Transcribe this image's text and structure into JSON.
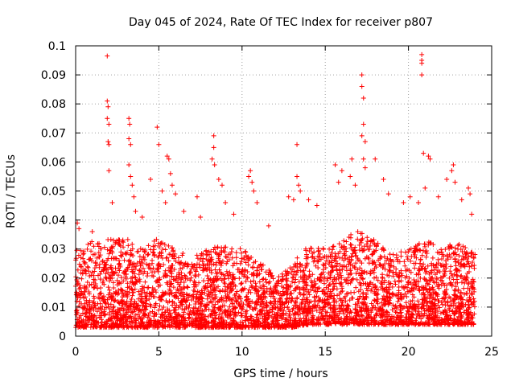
{
  "chart_data": {
    "type": "scatter",
    "title": "Day 045 of 2024, Rate Of TEC Index for receiver p807",
    "xlabel": "GPS time / hours",
    "ylabel": "ROTI / TECUs",
    "xlim": [
      0,
      25
    ],
    "ylim": [
      0,
      0.1
    ],
    "xticks": [
      0,
      5,
      10,
      15,
      20,
      25
    ],
    "yticks": [
      0,
      0.01,
      0.02,
      0.03,
      0.04,
      0.05,
      0.06,
      0.07,
      0.08,
      0.09,
      0.1
    ],
    "xtick_labels": [
      "0",
      "5",
      "10",
      "15",
      "20",
      "25"
    ],
    "ytick_labels": [
      "0",
      "0.01",
      "0.02",
      "0.03",
      "0.04",
      "0.05",
      "0.06",
      "0.07",
      "0.08",
      "0.09",
      "0.1"
    ],
    "grid": true,
    "marker": "+",
    "color": "#ff0000",
    "series": [
      {
        "name": "ROTI",
        "peaks": [
          {
            "x": 0.1,
            "y": 0.039
          },
          {
            "x": 0.2,
            "y": 0.037
          },
          {
            "x": 1.0,
            "y": 0.036
          },
          {
            "x": 1.9,
            "y": 0.0965
          },
          {
            "x": 1.9,
            "y": 0.081
          },
          {
            "x": 1.95,
            "y": 0.079
          },
          {
            "x": 1.9,
            "y": 0.075
          },
          {
            "x": 2.0,
            "y": 0.073
          },
          {
            "x": 1.95,
            "y": 0.067
          },
          {
            "x": 2.0,
            "y": 0.066
          },
          {
            "x": 2.0,
            "y": 0.057
          },
          {
            "x": 2.2,
            "y": 0.046
          },
          {
            "x": 3.2,
            "y": 0.075
          },
          {
            "x": 3.25,
            "y": 0.073
          },
          {
            "x": 3.2,
            "y": 0.068
          },
          {
            "x": 3.3,
            "y": 0.066
          },
          {
            "x": 3.2,
            "y": 0.059
          },
          {
            "x": 3.3,
            "y": 0.055
          },
          {
            "x": 3.4,
            "y": 0.052
          },
          {
            "x": 3.5,
            "y": 0.048
          },
          {
            "x": 3.6,
            "y": 0.043
          },
          {
            "x": 4.0,
            "y": 0.041
          },
          {
            "x": 4.5,
            "y": 0.054
          },
          {
            "x": 4.9,
            "y": 0.072
          },
          {
            "x": 5.0,
            "y": 0.066
          },
          {
            "x": 5.2,
            "y": 0.05
          },
          {
            "x": 5.4,
            "y": 0.046
          },
          {
            "x": 5.5,
            "y": 0.062
          },
          {
            "x": 5.6,
            "y": 0.061
          },
          {
            "x": 5.7,
            "y": 0.056
          },
          {
            "x": 5.8,
            "y": 0.052
          },
          {
            "x": 6.0,
            "y": 0.049
          },
          {
            "x": 6.5,
            "y": 0.043
          },
          {
            "x": 7.3,
            "y": 0.048
          },
          {
            "x": 7.5,
            "y": 0.041
          },
          {
            "x": 8.3,
            "y": 0.069
          },
          {
            "x": 8.3,
            "y": 0.065
          },
          {
            "x": 8.2,
            "y": 0.061
          },
          {
            "x": 8.35,
            "y": 0.059
          },
          {
            "x": 8.6,
            "y": 0.054
          },
          {
            "x": 8.8,
            "y": 0.052
          },
          {
            "x": 9.0,
            "y": 0.046
          },
          {
            "x": 9.5,
            "y": 0.042
          },
          {
            "x": 10.5,
            "y": 0.057
          },
          {
            "x": 10.4,
            "y": 0.055
          },
          {
            "x": 10.6,
            "y": 0.053
          },
          {
            "x": 10.7,
            "y": 0.05
          },
          {
            "x": 10.9,
            "y": 0.046
          },
          {
            "x": 11.6,
            "y": 0.038
          },
          {
            "x": 12.8,
            "y": 0.048
          },
          {
            "x": 13.1,
            "y": 0.047
          },
          {
            "x": 13.3,
            "y": 0.066
          },
          {
            "x": 13.3,
            "y": 0.055
          },
          {
            "x": 13.4,
            "y": 0.052
          },
          {
            "x": 13.5,
            "y": 0.05
          },
          {
            "x": 14.0,
            "y": 0.047
          },
          {
            "x": 14.5,
            "y": 0.045
          },
          {
            "x": 15.6,
            "y": 0.059
          },
          {
            "x": 15.8,
            "y": 0.053
          },
          {
            "x": 16.0,
            "y": 0.057
          },
          {
            "x": 16.5,
            "y": 0.055
          },
          {
            "x": 16.6,
            "y": 0.061
          },
          {
            "x": 16.8,
            "y": 0.052
          },
          {
            "x": 17.2,
            "y": 0.09
          },
          {
            "x": 17.2,
            "y": 0.086
          },
          {
            "x": 17.3,
            "y": 0.082
          },
          {
            "x": 17.3,
            "y": 0.073
          },
          {
            "x": 17.2,
            "y": 0.069
          },
          {
            "x": 17.4,
            "y": 0.067
          },
          {
            "x": 17.3,
            "y": 0.061
          },
          {
            "x": 17.4,
            "y": 0.058
          },
          {
            "x": 18.0,
            "y": 0.061
          },
          {
            "x": 18.5,
            "y": 0.054
          },
          {
            "x": 18.8,
            "y": 0.049
          },
          {
            "x": 19.7,
            "y": 0.046
          },
          {
            "x": 20.1,
            "y": 0.048
          },
          {
            "x": 20.8,
            "y": 0.097
          },
          {
            "x": 20.8,
            "y": 0.095
          },
          {
            "x": 20.8,
            "y": 0.094
          },
          {
            "x": 20.8,
            "y": 0.09
          },
          {
            "x": 20.9,
            "y": 0.063
          },
          {
            "x": 21.2,
            "y": 0.062
          },
          {
            "x": 21.3,
            "y": 0.061
          },
          {
            "x": 21.0,
            "y": 0.051
          },
          {
            "x": 20.6,
            "y": 0.046
          },
          {
            "x": 21.8,
            "y": 0.048
          },
          {
            "x": 22.3,
            "y": 0.054
          },
          {
            "x": 22.7,
            "y": 0.059
          },
          {
            "x": 22.6,
            "y": 0.057
          },
          {
            "x": 22.8,
            "y": 0.053
          },
          {
            "x": 23.2,
            "y": 0.047
          },
          {
            "x": 23.6,
            "y": 0.051
          },
          {
            "x": 23.7,
            "y": 0.049
          },
          {
            "x": 23.8,
            "y": 0.042
          }
        ],
        "background": {
          "x_range": [
            0,
            24
          ],
          "note": "dense band of points over the full day",
          "envelope": [
            {
              "x": 0,
              "lo": 0.003,
              "hi": 0.03
            },
            {
              "x": 1,
              "lo": 0.003,
              "hi": 0.033
            },
            {
              "x": 2,
              "lo": 0.003,
              "hi": 0.034
            },
            {
              "x": 3,
              "lo": 0.003,
              "hi": 0.034
            },
            {
              "x": 4,
              "lo": 0.003,
              "hi": 0.03
            },
            {
              "x": 5,
              "lo": 0.003,
              "hi": 0.034
            },
            {
              "x": 6,
              "lo": 0.003,
              "hi": 0.03
            },
            {
              "x": 7,
              "lo": 0.003,
              "hi": 0.027
            },
            {
              "x": 8,
              "lo": 0.003,
              "hi": 0.03
            },
            {
              "x": 9,
              "lo": 0.003,
              "hi": 0.032
            },
            {
              "x": 10,
              "lo": 0.003,
              "hi": 0.03
            },
            {
              "x": 11,
              "lo": 0.003,
              "hi": 0.026
            },
            {
              "x": 12,
              "lo": 0.003,
              "hi": 0.021
            },
            {
              "x": 13,
              "lo": 0.003,
              "hi": 0.025
            },
            {
              "x": 14,
              "lo": 0.004,
              "hi": 0.032
            },
            {
              "x": 15,
              "lo": 0.004,
              "hi": 0.03
            },
            {
              "x": 16,
              "lo": 0.004,
              "hi": 0.033
            },
            {
              "x": 17,
              "lo": 0.004,
              "hi": 0.037
            },
            {
              "x": 18,
              "lo": 0.004,
              "hi": 0.033
            },
            {
              "x": 19,
              "lo": 0.004,
              "hi": 0.028
            },
            {
              "x": 20,
              "lo": 0.004,
              "hi": 0.03
            },
            {
              "x": 21,
              "lo": 0.004,
              "hi": 0.033
            },
            {
              "x": 22,
              "lo": 0.004,
              "hi": 0.031
            },
            {
              "x": 23,
              "lo": 0.004,
              "hi": 0.032
            },
            {
              "x": 24,
              "lo": 0.004,
              "hi": 0.03
            }
          ]
        }
      }
    ]
  }
}
